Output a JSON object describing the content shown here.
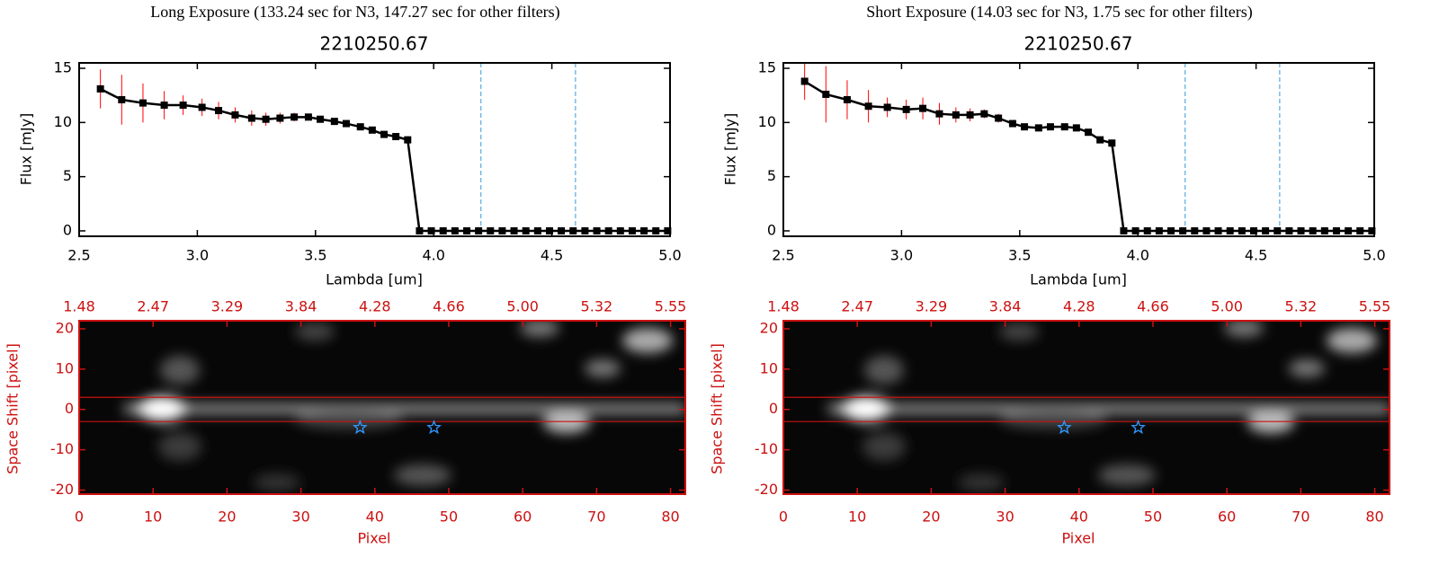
{
  "chart_data": [
    {
      "type": "line",
      "title": "Long Exposure (133.24 sec for N3, 147.27 sec for other filters)",
      "subtitle": "2210250.67",
      "xlabel": "Lambda [um]",
      "ylabel": "Flux [mJy]",
      "x": [
        2.59,
        2.68,
        2.77,
        2.86,
        2.94,
        3.02,
        3.09,
        3.16,
        3.23,
        3.29,
        3.35,
        3.41,
        3.47,
        3.52,
        3.58,
        3.63,
        3.69,
        3.74,
        3.79,
        3.84,
        3.89,
        3.94,
        3.99,
        4.04,
        4.09,
        4.14,
        4.19,
        4.24,
        4.29,
        4.34,
        4.39,
        4.44,
        4.49,
        4.54,
        4.59,
        4.64,
        4.69,
        4.74,
        4.79,
        4.84,
        4.89,
        4.94,
        4.99
      ],
      "values": [
        13.1,
        12.1,
        11.8,
        11.6,
        11.6,
        11.4,
        11.1,
        10.7,
        10.4,
        10.3,
        10.4,
        10.5,
        10.5,
        10.3,
        10.1,
        9.9,
        9.6,
        9.3,
        8.9,
        8.7,
        8.4,
        0,
        0,
        0,
        0,
        0,
        0,
        0,
        0,
        0,
        0,
        0,
        0,
        0,
        0,
        0,
        0,
        0,
        0,
        0,
        0,
        0,
        0
      ],
      "errors": [
        1.8,
        2.3,
        1.8,
        1.3,
        0.9,
        0.8,
        0.8,
        0.7,
        0.7,
        0.6,
        0.5,
        0.4,
        0.3,
        0.3,
        0.3,
        0.3,
        0.2,
        0.2,
        0.2,
        0.2,
        0.2,
        0.2,
        0.2,
        0.2,
        0.2,
        0.2,
        0.2,
        0.2,
        0.2,
        0.2,
        0.2,
        0.2,
        0.2,
        0.2,
        0.2,
        0.2,
        0.2,
        0.2,
        0.2,
        0.2,
        0.2,
        0.2,
        0.2
      ],
      "color": "#000000",
      "error_color": "#ff0000",
      "vlines": [
        4.2,
        4.6
      ],
      "vline_color": "#3399dd",
      "xlim": [
        2.5,
        5.0
      ],
      "xticks": [
        2.5,
        {
          "value": 3,
          "label": "3.0"
        },
        3.5,
        {
          "value": 4,
          "label": "4.0"
        },
        4.5,
        {
          "value": 5,
          "label": "5.0"
        }
      ],
      "ylim": [
        -0.5,
        15.5
      ],
      "yticks": [
        0,
        5,
        10,
        15
      ]
    },
    {
      "type": "image",
      "xlabel": "Pixel",
      "ylabel": "Space Shift [pixel]",
      "color": "#cc1111",
      "star_color": "#3399ff",
      "xlim": [
        0,
        82
      ],
      "xticks": [
        0,
        10,
        20,
        30,
        40,
        50,
        60,
        70,
        80
      ],
      "x2ticks": [
        {
          "value": 0,
          "label": "1.48"
        },
        {
          "value": 10,
          "label": "2.47"
        },
        {
          "value": 20,
          "label": "3.29"
        },
        {
          "value": 30,
          "label": "3.84"
        },
        {
          "value": 40,
          "label": "4.28"
        },
        {
          "value": 50,
          "label": "4.66"
        },
        {
          "value": 60,
          "label": "5.00"
        },
        {
          "value": 70,
          "label": "5.32"
        },
        {
          "value": 80,
          "label": "5.55"
        }
      ],
      "ylim": [
        -21,
        22
      ],
      "yticks": [
        -20,
        -10,
        0,
        10,
        20
      ],
      "hlines": [
        3,
        -3
      ],
      "star_x": [
        38,
        48
      ],
      "star_y": [
        -4.5,
        -4.5
      ]
    },
    {
      "type": "line",
      "title": "Short Exposure (14.03 sec for N3, 1.75 sec for other filters)",
      "subtitle": "2210250.67",
      "xlabel": "Lambda [um]",
      "ylabel": "Flux [mJy]",
      "x": [
        2.59,
        2.68,
        2.77,
        2.86,
        2.94,
        3.02,
        3.09,
        3.16,
        3.23,
        3.29,
        3.35,
        3.41,
        3.47,
        3.52,
        3.58,
        3.63,
        3.69,
        3.74,
        3.79,
        3.84,
        3.89,
        3.94,
        3.99,
        4.04,
        4.09,
        4.14,
        4.19,
        4.24,
        4.29,
        4.34,
        4.39,
        4.44,
        4.49,
        4.54,
        4.59,
        4.64,
        4.69,
        4.74,
        4.79,
        4.84,
        4.89,
        4.94,
        4.99
      ],
      "values": [
        13.8,
        12.6,
        12.1,
        11.5,
        11.4,
        11.2,
        11.3,
        10.8,
        10.7,
        10.7,
        10.8,
        10.4,
        9.9,
        9.6,
        9.5,
        9.6,
        9.6,
        9.5,
        9.1,
        8.4,
        8.1,
        0,
        0,
        0,
        0,
        0,
        0,
        0,
        0,
        0,
        0,
        0,
        0,
        0,
        0,
        0,
        0,
        0,
        0,
        0,
        0,
        0,
        0
      ],
      "errors": [
        1.7,
        2.6,
        1.8,
        1.5,
        0.9,
        0.9,
        1.0,
        1.0,
        0.7,
        0.6,
        0.4,
        0.4,
        0.3,
        0.3,
        0.3,
        0.3,
        0.3,
        0.3,
        0.3,
        0.3,
        0.3,
        0.2,
        0.2,
        0.2,
        0.2,
        0.2,
        0.2,
        0.2,
        0.2,
        0.2,
        0.2,
        0.2,
        0.2,
        0.2,
        0.2,
        0.2,
        0.2,
        0.2,
        0.2,
        0.2,
        0.2,
        0.2,
        0.2
      ],
      "color": "#000000",
      "error_color": "#ff0000",
      "vlines": [
        4.2,
        4.6
      ],
      "vline_color": "#3399dd",
      "xlim": [
        2.5,
        5.0
      ],
      "xticks": [
        2.5,
        {
          "value": 3,
          "label": "3.0"
        },
        3.5,
        {
          "value": 4,
          "label": "4.0"
        },
        4.5,
        {
          "value": 5,
          "label": "5.0"
        }
      ],
      "ylim": [
        -0.5,
        15.5
      ],
      "yticks": [
        0,
        5,
        10,
        15
      ]
    },
    {
      "type": "image",
      "xlabel": "Pixel",
      "ylabel": "Space Shift [pixel]",
      "color": "#cc1111",
      "star_color": "#3399ff",
      "xlim": [
        0,
        82
      ],
      "xticks": [
        0,
        10,
        20,
        30,
        40,
        50,
        60,
        70,
        80
      ],
      "x2ticks": [
        {
          "value": 0,
          "label": "1.48"
        },
        {
          "value": 10,
          "label": "2.47"
        },
        {
          "value": 20,
          "label": "3.29"
        },
        {
          "value": 30,
          "label": "3.84"
        },
        {
          "value": 40,
          "label": "4.28"
        },
        {
          "value": 50,
          "label": "4.66"
        },
        {
          "value": 60,
          "label": "5.00"
        },
        {
          "value": 70,
          "label": "5.32"
        },
        {
          "value": 80,
          "label": "5.55"
        }
      ],
      "ylim": [
        -21,
        22
      ],
      "yticks": [
        -20,
        -10,
        0,
        10,
        20
      ],
      "hlines": [
        3,
        -3
      ],
      "star_x": [
        38,
        48
      ],
      "star_y": [
        -4.5,
        -4.5
      ]
    }
  ]
}
